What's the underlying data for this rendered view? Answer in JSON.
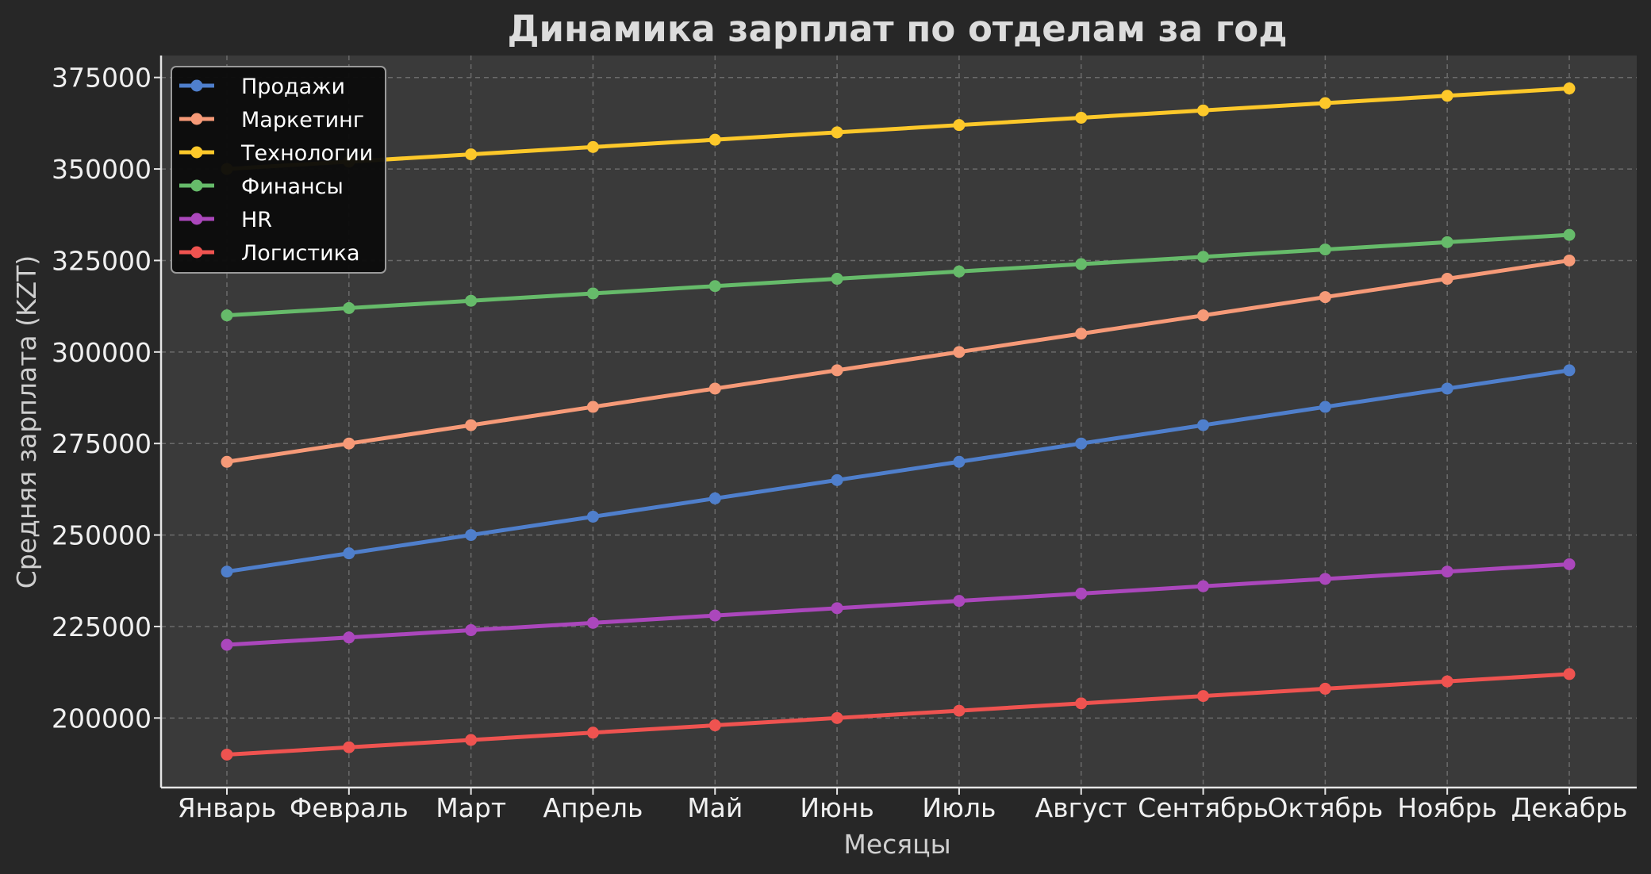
{
  "chart_data": {
    "type": "line",
    "title": "Динамика зарплат по отделам за год",
    "xlabel": "Месяцы",
    "ylabel": "Средняя зарплата (KZT)",
    "categories": [
      "Январь",
      "Февраль",
      "Март",
      "Апрель",
      "Май",
      "Июнь",
      "Июль",
      "Август",
      "Сентябрь",
      "Октябрь",
      "Ноябрь",
      "Декабрь"
    ],
    "y_ticks": [
      200000,
      225000,
      250000,
      275000,
      300000,
      325000,
      350000,
      375000
    ],
    "ylim": [
      181000,
      381000
    ],
    "grid": true,
    "legend_position": "top-left",
    "colors": {
      "background": "#272727",
      "plot_background": "#3a3a3a",
      "grid": "#6a6a6a",
      "axis": "#e6e6e6"
    },
    "series": [
      {
        "name": "Продажи",
        "color": "#4f7fcc",
        "values": [
          240000,
          245000,
          250000,
          255000,
          260000,
          265000,
          270000,
          275000,
          280000,
          285000,
          290000,
          295000
        ]
      },
      {
        "name": "Маркетинг",
        "color": "#f69a78",
        "values": [
          270000,
          275000,
          280000,
          285000,
          290000,
          295000,
          300000,
          305000,
          310000,
          315000,
          320000,
          325000
        ]
      },
      {
        "name": "Технологии",
        "color": "#fdc82a",
        "values": [
          350000,
          352000,
          354000,
          356000,
          358000,
          360000,
          362000,
          364000,
          366000,
          368000,
          370000,
          372000
        ]
      },
      {
        "name": "Финансы",
        "color": "#66bb6a",
        "values": [
          310000,
          312000,
          314000,
          316000,
          318000,
          320000,
          322000,
          324000,
          326000,
          328000,
          330000,
          332000
        ]
      },
      {
        "name": "HR",
        "color": "#ab47bc",
        "values": [
          220000,
          222000,
          224000,
          226000,
          228000,
          230000,
          232000,
          234000,
          236000,
          238000,
          240000,
          242000
        ]
      },
      {
        "name": "Логистика",
        "color": "#ef5350",
        "values": [
          190000,
          192000,
          194000,
          196000,
          198000,
          200000,
          202000,
          204000,
          206000,
          208000,
          210000,
          212000
        ]
      }
    ]
  }
}
